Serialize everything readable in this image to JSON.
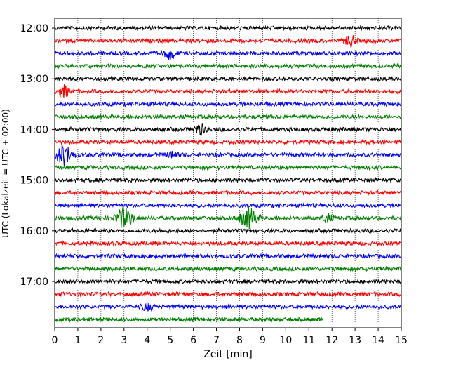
{
  "chart_data": {
    "type": "line",
    "title": "",
    "xlabel": "Zeit  [min]",
    "ylabel": "UTC (Lokalzeit = UTC + 02:00)",
    "xlim": [
      0,
      15
    ],
    "x_ticks": [
      "0",
      "1",
      "2",
      "3",
      "4",
      "5",
      "6",
      "7",
      "8",
      "9",
      "10",
      "11",
      "12",
      "13",
      "14",
      "15"
    ],
    "y_tick_labels": [
      "12:00",
      "13:00",
      "14:00",
      "15:00",
      "16:00",
      "17:00"
    ],
    "y_tick_trace_index": [
      0,
      4,
      8,
      12,
      16,
      20
    ],
    "trace_interval_minutes": 15,
    "grid_x": true,
    "grid_style": "dotted",
    "colors": [
      "#000000",
      "#ff0000",
      "#0000ff",
      "#008000"
    ],
    "traces": [
      {
        "start": "12:00",
        "color": "#000000",
        "end_min": 15
      },
      {
        "start": "12:15",
        "color": "#ff0000",
        "end_min": 15
      },
      {
        "start": "12:30",
        "color": "#0000ff",
        "end_min": 15
      },
      {
        "start": "12:45",
        "color": "#008000",
        "end_min": 15
      },
      {
        "start": "13:00",
        "color": "#000000",
        "end_min": 15
      },
      {
        "start": "13:15",
        "color": "#ff0000",
        "end_min": 15
      },
      {
        "start": "13:30",
        "color": "#0000ff",
        "end_min": 15
      },
      {
        "start": "13:45",
        "color": "#008000",
        "end_min": 15
      },
      {
        "start": "14:00",
        "color": "#000000",
        "end_min": 15
      },
      {
        "start": "14:15",
        "color": "#ff0000",
        "end_min": 15
      },
      {
        "start": "14:30",
        "color": "#0000ff",
        "end_min": 15
      },
      {
        "start": "14:45",
        "color": "#008000",
        "end_min": 15
      },
      {
        "start": "15:00",
        "color": "#000000",
        "end_min": 15
      },
      {
        "start": "15:15",
        "color": "#ff0000",
        "end_min": 15
      },
      {
        "start": "15:30",
        "color": "#0000ff",
        "end_min": 15
      },
      {
        "start": "15:45",
        "color": "#008000",
        "end_min": 15
      },
      {
        "start": "16:00",
        "color": "#000000",
        "end_min": 15
      },
      {
        "start": "16:15",
        "color": "#ff0000",
        "end_min": 15
      },
      {
        "start": "16:30",
        "color": "#0000ff",
        "end_min": 15
      },
      {
        "start": "16:45",
        "color": "#008000",
        "end_min": 15
      },
      {
        "start": "17:00",
        "color": "#000000",
        "end_min": 15
      },
      {
        "start": "17:15",
        "color": "#ff0000",
        "end_min": 15
      },
      {
        "start": "17:30",
        "color": "#0000ff",
        "end_min": 15
      },
      {
        "start": "17:45",
        "color": "#008000",
        "end_min": 11.6
      }
    ],
    "events": [
      {
        "trace": 1,
        "time_min": 12.8,
        "amplitude": "medium"
      },
      {
        "trace": 2,
        "time_min": 5.0,
        "amplitude": "medium"
      },
      {
        "trace": 5,
        "time_min": 0.4,
        "amplitude": "medium"
      },
      {
        "trace": 8,
        "time_min": 6.3,
        "amplitude": "medium"
      },
      {
        "trace": 10,
        "time_min": 0.4,
        "amplitude": "large"
      },
      {
        "trace": 10,
        "time_min": 5.1,
        "amplitude": "small"
      },
      {
        "trace": 15,
        "time_min": 3.0,
        "amplitude": "large"
      },
      {
        "trace": 15,
        "time_min": 8.4,
        "amplitude": "large"
      },
      {
        "trace": 15,
        "time_min": 11.8,
        "amplitude": "small"
      },
      {
        "trace": 22,
        "time_min": 4.0,
        "amplitude": "small"
      }
    ]
  }
}
